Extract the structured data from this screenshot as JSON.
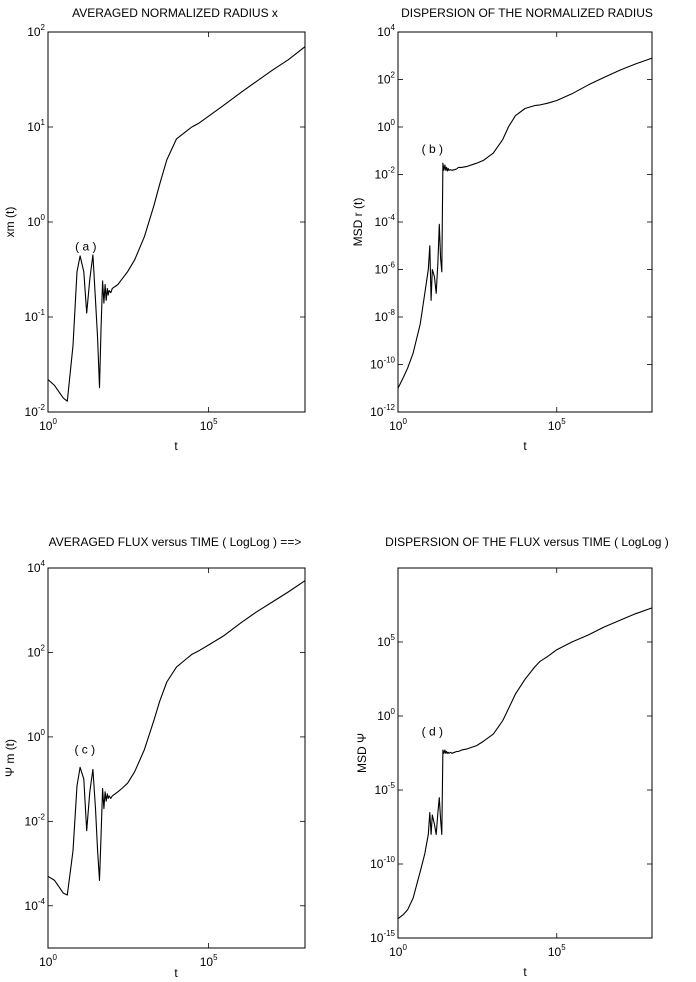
{
  "chart_data": [
    {
      "type": "line",
      "title": "AVERAGED NORMALIZED RADIUS x",
      "xlabel": "t",
      "ylabel": "xm (t)",
      "x_scale": "log",
      "y_scale": "log",
      "xlim": [
        1,
        100000000
      ],
      "ylim": [
        0.01,
        100
      ],
      "xticks": [
        {
          "base": "10",
          "exp": "0",
          "value": 1
        },
        {
          "base": "10",
          "exp": "5",
          "value": 100000
        }
      ],
      "yticks": [
        {
          "base": "10",
          "exp": "-2",
          "value": 0.01
        },
        {
          "base": "10",
          "exp": "-1",
          "value": 0.1
        },
        {
          "base": "10",
          "exp": "0",
          "value": 1
        },
        {
          "base": "10",
          "exp": "1",
          "value": 10
        },
        {
          "base": "10",
          "exp": "2",
          "value": 100
        }
      ],
      "grid": false,
      "annotation": {
        "text": "( a )",
        "x": 15,
        "y": 0.5
      },
      "series": [
        {
          "x": [
            1,
            1.6,
            3,
            4,
            6,
            8,
            10,
            13,
            16,
            20,
            25,
            30,
            35,
            40,
            45,
            50,
            55,
            60,
            65,
            70,
            75,
            80,
            90,
            100,
            150,
            200,
            300,
            500,
            1000,
            2000,
            3000,
            5000,
            10000,
            20000,
            30000,
            50000,
            100000,
            300000,
            1000000,
            3000000,
            10000000,
            30000000,
            100000000
          ],
          "y": [
            0.022,
            0.019,
            0.014,
            0.013,
            0.05,
            0.3,
            0.44,
            0.3,
            0.11,
            0.25,
            0.45,
            0.15,
            0.06,
            0.018,
            0.08,
            0.24,
            0.14,
            0.22,
            0.15,
            0.2,
            0.17,
            0.19,
            0.18,
            0.2,
            0.22,
            0.25,
            0.3,
            0.4,
            0.7,
            1.5,
            2.5,
            4.5,
            7.5,
            9,
            10,
            11,
            13,
            17,
            23,
            30,
            40,
            51,
            70
          ]
        }
      ]
    },
    {
      "type": "line",
      "title": "DISPERSION OF THE NORMALIZED RADIUS",
      "xlabel": "t",
      "ylabel": "MSD r (t)",
      "x_scale": "log",
      "y_scale": "log",
      "xlim": [
        1,
        100000000
      ],
      "ylim": [
        1e-12,
        10000
      ],
      "xticks": [
        {
          "base": "10",
          "exp": "0",
          "value": 1
        },
        {
          "base": "10",
          "exp": "5",
          "value": 100000
        }
      ],
      "yticks": [
        {
          "base": "10",
          "exp": "-12",
          "value": 1e-12
        },
        {
          "base": "10",
          "exp": "-10",
          "value": 1e-10
        },
        {
          "base": "10",
          "exp": "-8",
          "value": 1e-08
        },
        {
          "base": "10",
          "exp": "-6",
          "value": 1e-06
        },
        {
          "base": "10",
          "exp": "-4",
          "value": 0.0001
        },
        {
          "base": "10",
          "exp": "-2",
          "value": 0.01
        },
        {
          "base": "10",
          "exp": "0",
          "value": 1
        },
        {
          "base": "10",
          "exp": "2",
          "value": 100
        },
        {
          "base": "10",
          "exp": "4",
          "value": 10000
        }
      ],
      "grid": false,
      "annotation": {
        "text": "( b )",
        "x": 12,
        "y": 0.08
      },
      "series": [
        {
          "x": [
            1,
            1.5,
            2,
            3,
            5,
            7,
            9,
            10,
            11,
            12,
            14,
            16,
            18,
            20,
            22,
            24,
            26,
            28,
            30,
            32,
            34,
            36,
            38,
            40,
            45,
            50,
            60,
            70,
            80,
            100,
            150,
            300,
            500,
            1000,
            2000,
            3000,
            5000,
            10000,
            20000,
            30000,
            50000,
            100000,
            300000,
            1000000,
            3000000,
            10000000,
            30000000,
            100000000
          ],
          "y": [
            1e-11,
            3e-11,
            7e-11,
            3e-10,
            5e-09,
            1e-07,
            1e-06,
            1e-05,
            5e-08,
            1e-06,
            5e-07,
            1e-07,
            2e-06,
            8e-05,
            3e-06,
            8e-07,
            0.03,
            0.015,
            0.025,
            0.015,
            0.02,
            0.014,
            0.018,
            0.015,
            0.016,
            0.015,
            0.016,
            0.017,
            0.02,
            0.02,
            0.022,
            0.03,
            0.04,
            0.08,
            0.3,
            1,
            3,
            6,
            8,
            8.5,
            10,
            13,
            25,
            60,
            120,
            250,
            450,
            800
          ]
        }
      ]
    },
    {
      "type": "line",
      "title": "AVERAGED FLUX versus TIME ( LogLog ) ==>",
      "xlabel": "t",
      "ylabel": "Ψ m (t)",
      "x_scale": "log",
      "y_scale": "log",
      "xlim": [
        1,
        100000000
      ],
      "ylim": [
        1e-05,
        10000
      ],
      "xticks": [
        {
          "base": "10",
          "exp": "0",
          "value": 1
        },
        {
          "base": "10",
          "exp": "5",
          "value": 100000
        }
      ],
      "yticks": [
        {
          "base": "10",
          "exp": "-4",
          "value": 0.0001
        },
        {
          "base": "10",
          "exp": "-2",
          "value": 0.01
        },
        {
          "base": "10",
          "exp": "0",
          "value": 1
        },
        {
          "base": "10",
          "exp": "2",
          "value": 100
        },
        {
          "base": "10",
          "exp": "4",
          "value": 10000
        }
      ],
      "grid": false,
      "annotation": {
        "text": "( c )",
        "x": 14,
        "y": 0.4
      },
      "series": [
        {
          "x": [
            1,
            1.6,
            3,
            4,
            6,
            8,
            10,
            13,
            16,
            20,
            25,
            30,
            35,
            40,
            45,
            50,
            55,
            60,
            65,
            70,
            75,
            80,
            90,
            100,
            150,
            200,
            300,
            500,
            1000,
            2000,
            3000,
            5000,
            10000,
            20000,
            30000,
            50000,
            100000,
            300000,
            1000000,
            3000000,
            10000000,
            30000000,
            100000000
          ],
          "y": [
            0.0005,
            0.0004,
            0.0002,
            0.00018,
            0.002,
            0.07,
            0.19,
            0.1,
            0.006,
            0.05,
            0.17,
            0.02,
            0.002,
            0.0004,
            0.005,
            0.06,
            0.02,
            0.05,
            0.03,
            0.045,
            0.035,
            0.04,
            0.035,
            0.04,
            0.05,
            0.06,
            0.08,
            0.15,
            0.5,
            2.5,
            7,
            20,
            45,
            70,
            90,
            110,
            150,
            250,
            500,
            900,
            1600,
            2700,
            5000
          ]
        }
      ]
    },
    {
      "type": "line",
      "title": "DISPERSION OF THE FLUX versus TIME  ( LogLog )",
      "xlabel": "t",
      "ylabel": "MSD Ψ",
      "x_scale": "log",
      "y_scale": "log",
      "xlim": [
        1,
        100000000
      ],
      "ylim": [
        1e-15,
        10000000000.0
      ],
      "xticks": [
        {
          "base": "10",
          "exp": "0",
          "value": 1
        },
        {
          "base": "10",
          "exp": "5",
          "value": 100000
        }
      ],
      "yticks": [
        {
          "base": "10",
          "exp": "-15",
          "value": 1e-15
        },
        {
          "base": "10",
          "exp": "-10",
          "value": 1e-10
        },
        {
          "base": "10",
          "exp": "-5",
          "value": 1e-05
        },
        {
          "base": "10",
          "exp": "0",
          "value": 1
        },
        {
          "base": "10",
          "exp": "5",
          "value": 100000
        }
      ],
      "grid": false,
      "annotation": {
        "text": "( d )",
        "x": 12,
        "y": 0.05
      },
      "series": [
        {
          "x": [
            1,
            1.5,
            2,
            3,
            5,
            7,
            9,
            10,
            11,
            12,
            14,
            16,
            18,
            20,
            22,
            24,
            26,
            28,
            30,
            32,
            34,
            36,
            38,
            40,
            45,
            50,
            60,
            70,
            80,
            100,
            150,
            300,
            500,
            1000,
            1500,
            2000,
            3000,
            5000,
            10000,
            20000,
            30000,
            50000,
            100000,
            300000,
            1000000,
            3000000,
            10000000,
            30000000,
            100000000
          ],
          "y": [
            2e-14,
            4e-14,
            8e-14,
            5e-13,
            3e-11,
            5e-10,
            1e-08,
            3e-07,
            1e-08,
            2e-07,
            5e-08,
            1e-08,
            3e-07,
            3e-06,
            1e-07,
            1e-08,
            0.005,
            0.003,
            0.005,
            0.003,
            0.004,
            0.003,
            0.0035,
            0.003,
            0.0035,
            0.003,
            0.0035,
            0.004,
            0.004,
            0.005,
            0.006,
            0.01,
            0.02,
            0.06,
            0.2,
            0.5,
            3,
            30,
            300,
            2000,
            5000,
            10000,
            30000,
            100000,
            300000,
            1000000,
            3000000,
            8000000,
            20000000
          ]
        }
      ]
    }
  ]
}
